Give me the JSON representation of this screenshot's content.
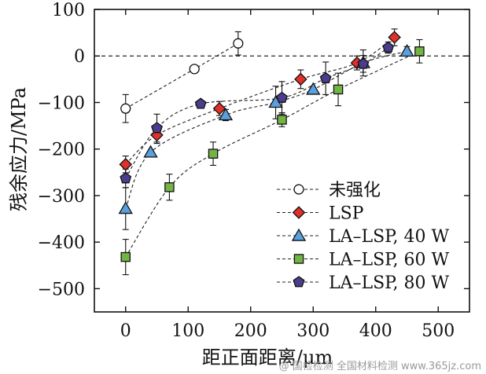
{
  "chart_data": {
    "type": "line",
    "title": "",
    "xlabel": "距正面距离/μm",
    "ylabel": "残余应力/MPa",
    "xlim": [
      -50,
      550
    ],
    "ylim": [
      -550,
      100
    ],
    "xticks": [
      0,
      100,
      200,
      300,
      400,
      500
    ],
    "yticks": [
      100,
      0,
      -100,
      -200,
      -300,
      -400,
      -500
    ],
    "xtick_labels": [
      "0",
      "100",
      "200",
      "300",
      "400",
      "500"
    ],
    "ytick_labels": [
      "100",
      "0",
      "−100",
      "−200",
      "−300",
      "−400",
      "−500"
    ],
    "reference_line_y": 0,
    "legend_position": "bottom-right",
    "series": [
      {
        "name": "未强化",
        "marker": "circle",
        "color": "#ffffff",
        "x": [
          0,
          110,
          180
        ],
        "y": [
          -113,
          -28,
          27
        ],
        "err": [
          30,
          8,
          25
        ]
      },
      {
        "name": "LSP",
        "marker": "diamond",
        "color": "#e0302a",
        "x": [
          0,
          50,
          150,
          280,
          370,
          430
        ],
        "y": [
          -233,
          -170,
          -113,
          -50,
          -15,
          40
        ],
        "err": [
          18,
          18,
          15,
          20,
          15,
          18
        ]
      },
      {
        "name": "LA–LSP, 40 W",
        "marker": "triangle",
        "color": "#5aa0dc",
        "x": [
          0,
          40,
          160,
          240,
          300,
          380,
          450
        ],
        "y": [
          -328,
          -207,
          -127,
          -100,
          -72,
          -15,
          10
        ],
        "err": [
          45,
          0,
          12,
          35,
          0,
          28,
          10
        ]
      },
      {
        "name": "LA–LSP, 60 W",
        "marker": "square",
        "color": "#73b545",
        "x": [
          0,
          70,
          140,
          250,
          340,
          470
        ],
        "y": [
          -432,
          -282,
          -210,
          -137,
          -72,
          10
        ],
        "err": [
          38,
          28,
          25,
          15,
          35,
          25
        ]
      },
      {
        "name": "LA–LSP, 80 W",
        "marker": "pentagon",
        "color": "#4b3c8c",
        "x": [
          0,
          50,
          120,
          250,
          320,
          380,
          420
        ],
        "y": [
          -263,
          -155,
          -103,
          -90,
          -48,
          -17,
          18
        ],
        "err": [
          20,
          30,
          0,
          35,
          35,
          18,
          12
        ]
      }
    ]
  },
  "watermark": "@ 国检检测 全国材料检测  www.365jz.com"
}
